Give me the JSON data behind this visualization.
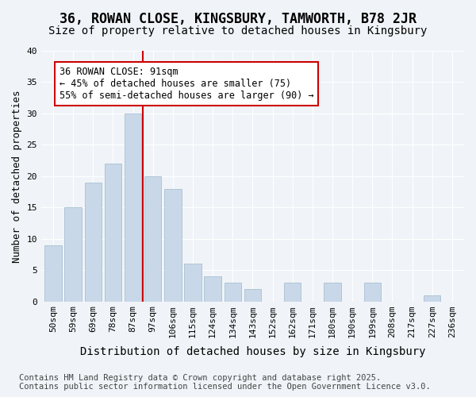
{
  "title": "36, ROWAN CLOSE, KINGSBURY, TAMWORTH, B78 2JR",
  "subtitle": "Size of property relative to detached houses in Kingsbury",
  "xlabel": "Distribution of detached houses by size in Kingsbury",
  "ylabel": "Number of detached properties",
  "categories": [
    "50sqm",
    "59sqm",
    "69sqm",
    "78sqm",
    "87sqm",
    "97sqm",
    "106sqm",
    "115sqm",
    "124sqm",
    "134sqm",
    "143sqm",
    "152sqm",
    "162sqm",
    "171sqm",
    "180sqm",
    "190sqm",
    "199sqm",
    "208sqm",
    "217sqm",
    "227sqm",
    "236sqm"
  ],
  "values": [
    9,
    15,
    19,
    22,
    30,
    20,
    18,
    6,
    4,
    3,
    2,
    0,
    3,
    0,
    3,
    0,
    3,
    0,
    0,
    1,
    0
  ],
  "bar_color": "#c8d8e8",
  "bar_edge_color": "#a0b8cc",
  "property_line_x": 4.5,
  "property_value": 91,
  "annotation_text": "36 ROWAN CLOSE: 91sqm\n← 45% of detached houses are smaller (75)\n55% of semi-detached houses are larger (90) →",
  "annotation_box_color": "#ffffff",
  "annotation_box_edge_color": "#cc0000",
  "vline_color": "#cc0000",
  "ylim": [
    0,
    40
  ],
  "yticks": [
    0,
    5,
    10,
    15,
    20,
    25,
    30,
    35,
    40
  ],
  "footer1": "Contains HM Land Registry data © Crown copyright and database right 2025.",
  "footer2": "Contains public sector information licensed under the Open Government Licence v3.0.",
  "bg_color": "#f0f4f8",
  "title_fontsize": 12,
  "subtitle_fontsize": 10,
  "xlabel_fontsize": 10,
  "ylabel_fontsize": 9,
  "tick_fontsize": 8,
  "annotation_fontsize": 8.5,
  "footer_fontsize": 7.5
}
